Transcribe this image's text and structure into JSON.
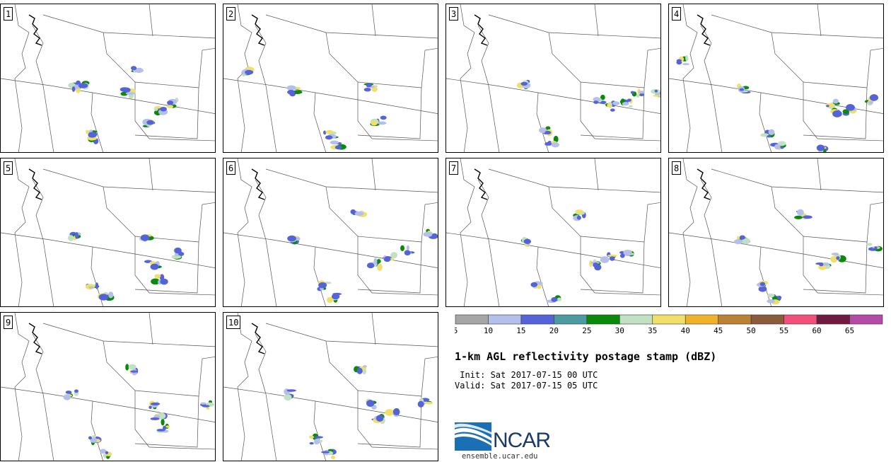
{
  "panels": [
    {
      "label": "1",
      "storms": [
        [
          105,
          118
        ],
        [
          115,
          112
        ],
        [
          125,
          180
        ],
        [
          135,
          190
        ],
        [
          180,
          125
        ],
        [
          210,
          170
        ],
        [
          225,
          150
        ],
        [
          245,
          140
        ],
        [
          190,
          90
        ]
      ]
    },
    {
      "label": "2",
      "storms": [
        [
          30,
          95
        ],
        [
          100,
          122
        ],
        [
          150,
          185
        ],
        [
          160,
          198
        ],
        [
          220,
          165
        ],
        [
          210,
          118
        ]
      ]
    },
    {
      "label": "3",
      "storms": [
        [
          110,
          112
        ],
        [
          140,
          180
        ],
        [
          150,
          195
        ],
        [
          215,
          135
        ],
        [
          235,
          145
        ],
        [
          255,
          140
        ],
        [
          270,
          128
        ],
        [
          300,
          125
        ]
      ]
    },
    {
      "label": "4",
      "storms": [
        [
          20,
          80
        ],
        [
          105,
          120
        ],
        [
          140,
          185
        ],
        [
          155,
          200
        ],
        [
          230,
          140
        ],
        [
          240,
          150
        ],
        [
          255,
          150
        ],
        [
          285,
          135
        ],
        [
          220,
          205
        ]
      ]
    },
    {
      "label": "5",
      "storms": [
        [
          105,
          110
        ],
        [
          130,
          180
        ],
        [
          150,
          195
        ],
        [
          205,
          110
        ],
        [
          215,
          150
        ],
        [
          225,
          170
        ],
        [
          255,
          135
        ]
      ]
    },
    {
      "label": "6",
      "storms": [
        [
          100,
          115
        ],
        [
          140,
          180
        ],
        [
          155,
          195
        ],
        [
          215,
          150
        ],
        [
          235,
          140
        ],
        [
          260,
          130
        ],
        [
          295,
          105
        ],
        [
          190,
          80
        ]
      ]
    },
    {
      "label": "7",
      "storms": [
        [
          110,
          120
        ],
        [
          130,
          180
        ],
        [
          155,
          200
        ],
        [
          210,
          150
        ],
        [
          230,
          140
        ],
        [
          255,
          135
        ],
        [
          190,
          80
        ]
      ]
    },
    {
      "label": "8",
      "storms": [
        [
          105,
          115
        ],
        [
          130,
          180
        ],
        [
          150,
          198
        ],
        [
          220,
          150
        ],
        [
          240,
          140
        ],
        [
          290,
          125
        ],
        [
          190,
          80
        ]
      ]
    },
    {
      "label": "9",
      "storms": [
        [
          100,
          115
        ],
        [
          130,
          180
        ],
        [
          150,
          200
        ],
        [
          215,
          130
        ],
        [
          225,
          150
        ],
        [
          230,
          165
        ],
        [
          290,
          130
        ],
        [
          185,
          80
        ]
      ]
    },
    {
      "label": "10",
      "storms": [
        [
          95,
          115
        ],
        [
          130,
          180
        ],
        [
          150,
          200
        ],
        [
          210,
          130
        ],
        [
          220,
          150
        ],
        [
          240,
          140
        ],
        [
          285,
          128
        ],
        [
          195,
          80
        ]
      ]
    }
  ],
  "colorbar": {
    "colors": [
      "#a6a6a6",
      "#b4c0eb",
      "#5563d9",
      "#4e9aa3",
      "#0a8a0a",
      "#c2e0c2",
      "#f0e06a",
      "#f0b228",
      "#ba8234",
      "#8c5a3c",
      "#f0507a",
      "#6e1a41",
      "#b44ba7"
    ],
    "ticks": [
      "5",
      "10",
      "15",
      "20",
      "25",
      "30",
      "35",
      "40",
      "45",
      "50",
      "55",
      "60",
      "65"
    ]
  },
  "title": "1-km AGL reflectivity postage stamp (dBZ)",
  "init_line": " Init: Sat 2017-07-15 00 UTC",
  "valid_line": "Valid: Sat 2017-07-15 05 UTC",
  "logo": {
    "text": "NCAR",
    "url": "ensemble.ucar.edu"
  }
}
